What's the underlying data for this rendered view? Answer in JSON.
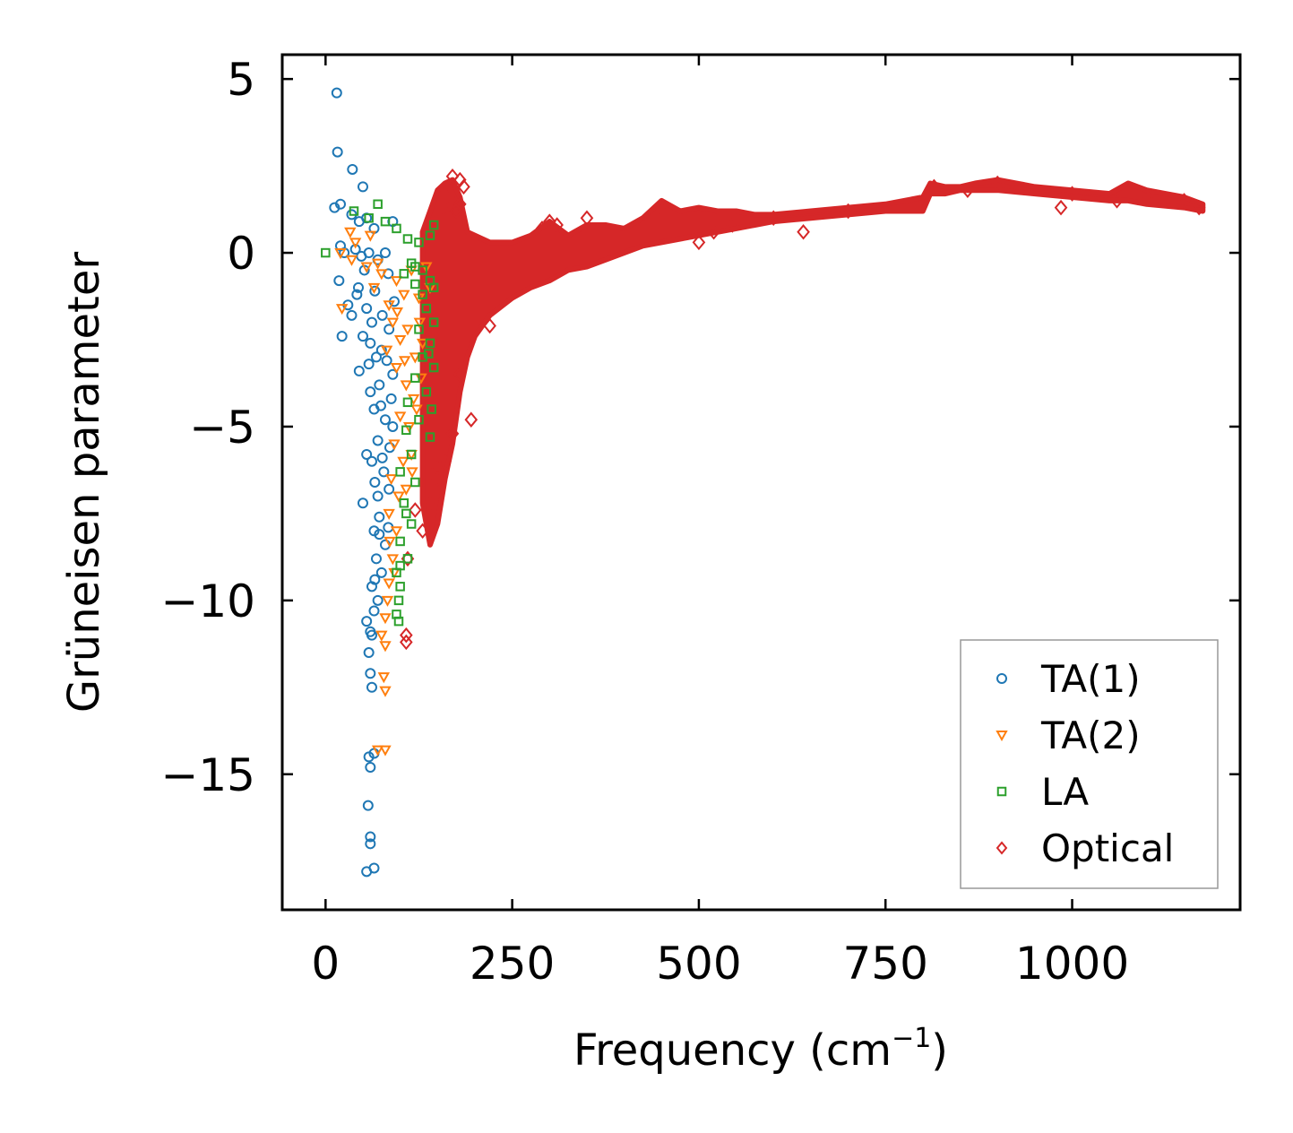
{
  "chart_data": {
    "type": "scatter",
    "title": "",
    "xlabel": "Frequency (cm",
    "xlabel_superscript": "−1",
    "xlabel_suffix": ")",
    "ylabel": "Grüneisen parameter",
    "xlim": [
      -58,
      1225
    ],
    "ylim": [
      -18.9,
      5.7
    ],
    "xticks": [
      0,
      250,
      500,
      750,
      1000
    ],
    "xtick_labels": [
      "0",
      "250",
      "500",
      "750",
      "1000"
    ],
    "yticks": [
      5,
      0,
      -5,
      -10,
      -15
    ],
    "ytick_labels": [
      "5",
      "0",
      "−5",
      "−10",
      "−15"
    ],
    "grid": false,
    "legend_position": "bottom-right",
    "series": [
      {
        "name": "TA(1)",
        "marker": "circle",
        "color": "#1f77b4",
        "points": [
          [
            15,
            4.6
          ],
          [
            16,
            2.9
          ],
          [
            36,
            2.4
          ],
          [
            50,
            1.9
          ],
          [
            12,
            1.3
          ],
          [
            20,
            1.4
          ],
          [
            35,
            1.1
          ],
          [
            45,
            0.9
          ],
          [
            55,
            1.0
          ],
          [
            65,
            0.7
          ],
          [
            90,
            0.9
          ],
          [
            20,
            0.2
          ],
          [
            25,
            0.0
          ],
          [
            40,
            0.1
          ],
          [
            48,
            -0.1
          ],
          [
            58,
            0.0
          ],
          [
            70,
            -0.2
          ],
          [
            80,
            0.0
          ],
          [
            18,
            -0.8
          ],
          [
            30,
            -1.5
          ],
          [
            42,
            -1.2
          ],
          [
            55,
            -1.6
          ],
          [
            62,
            -2.0
          ],
          [
            35,
            -1.8
          ],
          [
            22,
            -2.4
          ],
          [
            50,
            -2.4
          ],
          [
            60,
            -2.6
          ],
          [
            68,
            -3.0
          ],
          [
            45,
            -3.4
          ],
          [
            75,
            -2.8
          ],
          [
            85,
            -2.2
          ],
          [
            90,
            -3.5
          ],
          [
            72,
            -3.8
          ],
          [
            60,
            -4.0
          ],
          [
            88,
            -4.2
          ],
          [
            65,
            -4.5
          ],
          [
            80,
            -4.8
          ],
          [
            70,
            -5.4
          ],
          [
            90,
            -5.0
          ],
          [
            55,
            -5.8
          ],
          [
            62,
            -6.0
          ],
          [
            78,
            -6.3
          ],
          [
            50,
            -7.2
          ],
          [
            70,
            -7.0
          ],
          [
            85,
            -6.8
          ],
          [
            72,
            -7.6
          ],
          [
            65,
            -8.0
          ],
          [
            80,
            -8.4
          ],
          [
            68,
            -8.8
          ],
          [
            75,
            -9.2
          ],
          [
            62,
            -9.6
          ],
          [
            70,
            -10.0
          ],
          [
            65,
            -10.3
          ],
          [
            55,
            -10.6
          ],
          [
            62,
            -11.0
          ],
          [
            58,
            -11.5
          ],
          [
            60,
            -12.1
          ],
          [
            62,
            -12.5
          ],
          [
            58,
            -14.5
          ],
          [
            65,
            -14.4
          ],
          [
            60,
            -14.8
          ],
          [
            57,
            -15.9
          ],
          [
            60,
            -16.8
          ],
          [
            60,
            -17.0
          ],
          [
            55,
            -17.8
          ],
          [
            65,
            -17.7
          ],
          [
            44,
            -1.0
          ],
          [
            52,
            -0.5
          ],
          [
            66,
            -1.1
          ],
          [
            76,
            -1.8
          ],
          [
            84,
            -0.6
          ],
          [
            92,
            -1.4
          ],
          [
            58,
            -3.2
          ],
          [
            82,
            -3.1
          ],
          [
            74,
            -4.4
          ],
          [
            86,
            -5.6
          ],
          [
            66,
            -6.6
          ],
          [
            76,
            -5.9
          ],
          [
            84,
            -7.9
          ],
          [
            66,
            -9.4
          ],
          [
            72,
            -8.1
          ],
          [
            60,
            -10.9
          ]
        ]
      },
      {
        "name": "TA(2)",
        "marker": "triangle-down",
        "color": "#ff7f0e",
        "points": [
          [
            20,
            0.0
          ],
          [
            33,
            0.6
          ],
          [
            40,
            0.3
          ],
          [
            35,
            -0.2
          ],
          [
            22,
            -1.6
          ],
          [
            55,
            -0.4
          ],
          [
            65,
            -1.0
          ],
          [
            75,
            -0.6
          ],
          [
            85,
            -1.5
          ],
          [
            95,
            -0.8
          ],
          [
            105,
            -1.2
          ],
          [
            115,
            -0.5
          ],
          [
            125,
            -1.3
          ],
          [
            90,
            -2.0
          ],
          [
            100,
            -2.5
          ],
          [
            110,
            -2.2
          ],
          [
            120,
            -3.0
          ],
          [
            130,
            -2.6
          ],
          [
            95,
            -3.3
          ],
          [
            108,
            -3.8
          ],
          [
            118,
            -4.2
          ],
          [
            128,
            -3.6
          ],
          [
            100,
            -4.7
          ],
          [
            112,
            -5.0
          ],
          [
            122,
            -4.5
          ],
          [
            92,
            -5.5
          ],
          [
            104,
            -6.0
          ],
          [
            115,
            -5.8
          ],
          [
            88,
            -6.5
          ],
          [
            98,
            -7.0
          ],
          [
            108,
            -6.8
          ],
          [
            85,
            -7.5
          ],
          [
            95,
            -8.0
          ],
          [
            90,
            -8.8
          ],
          [
            85,
            -9.5
          ],
          [
            80,
            -10.5
          ],
          [
            75,
            -11.0
          ],
          [
            80,
            -11.3
          ],
          [
            78,
            -12.2
          ],
          [
            80,
            -12.6
          ],
          [
            80,
            -14.3
          ],
          [
            70,
            -14.3
          ],
          [
            60,
            0.5
          ],
          [
            70,
            -0.3
          ],
          [
            140,
            -1.0
          ],
          [
            135,
            -0.4
          ],
          [
            82,
            -2.8
          ],
          [
            96,
            -1.7
          ],
          [
            126,
            -2.0
          ],
          [
            106,
            -3.1
          ],
          [
            116,
            -6.3
          ],
          [
            86,
            -8.3
          ],
          [
            92,
            -9.2
          ],
          [
            83,
            -10.0
          ]
        ]
      },
      {
        "name": "LA",
        "marker": "square",
        "color": "#2ca02c",
        "points": [
          [
            0,
            0.0
          ],
          [
            38,
            1.2
          ],
          [
            58,
            1.0
          ],
          [
            70,
            1.4
          ],
          [
            80,
            0.9
          ],
          [
            95,
            0.7
          ],
          [
            110,
            0.4
          ],
          [
            125,
            0.3
          ],
          [
            140,
            0.5
          ],
          [
            145,
            0.8
          ],
          [
            115,
            -0.3
          ],
          [
            130,
            -0.5
          ],
          [
            140,
            -0.8
          ],
          [
            120,
            -0.9
          ],
          [
            135,
            -1.6
          ],
          [
            145,
            -2.0
          ],
          [
            125,
            -2.2
          ],
          [
            140,
            -2.6
          ],
          [
            130,
            -3.0
          ],
          [
            145,
            -3.3
          ],
          [
            120,
            -3.6
          ],
          [
            135,
            -4.0
          ],
          [
            110,
            -4.3
          ],
          [
            125,
            -4.8
          ],
          [
            140,
            -5.3
          ],
          [
            115,
            -5.8
          ],
          [
            100,
            -6.3
          ],
          [
            120,
            -6.6
          ],
          [
            105,
            -7.2
          ],
          [
            115,
            -7.8
          ],
          [
            100,
            -8.3
          ],
          [
            110,
            -8.8
          ],
          [
            95,
            -9.2
          ],
          [
            100,
            -9.6
          ],
          [
            98,
            -10.0
          ],
          [
            95,
            -10.4
          ],
          [
            98,
            -10.6
          ],
          [
            130,
            -1.2
          ],
          [
            120,
            -0.4
          ],
          [
            145,
            -1.0
          ],
          [
            138,
            -2.9
          ],
          [
            108,
            -5.1
          ],
          [
            108,
            -7.5
          ],
          [
            100,
            -9.0
          ],
          [
            105,
            -0.6
          ],
          [
            142,
            -4.5
          ]
        ]
      },
      {
        "name": "Optical",
        "marker": "diamond",
        "color": "#d62728",
        "band": {
          "x": [
            130,
            140,
            150,
            160,
            170,
            180,
            190,
            200,
            220,
            250,
            275,
            300,
            325,
            350,
            375,
            400,
            425,
            450,
            475,
            500,
            525,
            550,
            575,
            600,
            650,
            700,
            750,
            800,
            810,
            830,
            850,
            870,
            900,
            950,
            1000,
            1050,
            1075,
            1100,
            1150,
            1175
          ],
          "upper": [
            0.6,
            1.2,
            1.8,
            2.0,
            2.1,
            1.6,
            0.6,
            0.5,
            0.3,
            0.3,
            0.5,
            0.9,
            0.5,
            0.8,
            0.8,
            0.7,
            1.0,
            1.5,
            1.2,
            1.3,
            1.2,
            1.2,
            1.1,
            1.1,
            1.2,
            1.3,
            1.4,
            1.6,
            2.0,
            1.9,
            1.9,
            2.0,
            2.1,
            1.9,
            1.8,
            1.7,
            2.0,
            1.8,
            1.6,
            1.4
          ],
          "lower": [
            -7.2,
            -8.4,
            -7.8,
            -6.5,
            -5.5,
            -4.0,
            -3.0,
            -2.4,
            -1.8,
            -1.3,
            -1.0,
            -0.8,
            -0.5,
            -0.4,
            -0.2,
            0.0,
            0.2,
            0.3,
            0.4,
            0.5,
            0.6,
            0.7,
            0.8,
            0.9,
            1.0,
            1.1,
            1.2,
            1.2,
            1.7,
            1.7,
            1.8,
            1.8,
            1.8,
            1.7,
            1.6,
            1.5,
            1.5,
            1.4,
            1.3,
            1.2
          ]
        },
        "points": [
          [
            170,
            2.2
          ],
          [
            180,
            2.1
          ],
          [
            185,
            1.9
          ],
          [
            180,
            1.4
          ],
          [
            165,
            1.6
          ],
          [
            158,
            1.3
          ],
          [
            175,
            1.2
          ],
          [
            160,
            -6.0
          ],
          [
            150,
            -6.5
          ],
          [
            140,
            -7.2
          ],
          [
            130,
            -8.0
          ],
          [
            120,
            -7.4
          ],
          [
            110,
            -8.8
          ],
          [
            108,
            -11.0
          ],
          [
            108,
            -11.2
          ],
          [
            220,
            -2.1
          ],
          [
            180,
            -3.5
          ],
          [
            195,
            -4.8
          ],
          [
            170,
            -5.2
          ],
          [
            150,
            -6.2
          ],
          [
            500,
            0.3
          ],
          [
            520,
            0.6
          ],
          [
            545,
            0.8
          ],
          [
            640,
            0.6
          ],
          [
            985,
            1.3
          ],
          [
            1060,
            1.5
          ],
          [
            300,
            0.9
          ],
          [
            290,
            0.7
          ],
          [
            310,
            0.8
          ],
          [
            350,
            1.0
          ],
          [
            450,
            1.3
          ],
          [
            600,
            1.0
          ],
          [
            700,
            1.2
          ],
          [
            900,
            2.0
          ],
          [
            1000,
            1.7
          ],
          [
            1100,
            1.6
          ],
          [
            1150,
            1.5
          ],
          [
            1170,
            1.3
          ],
          [
            815,
            1.9
          ],
          [
            860,
            1.8
          ]
        ]
      }
    ]
  }
}
